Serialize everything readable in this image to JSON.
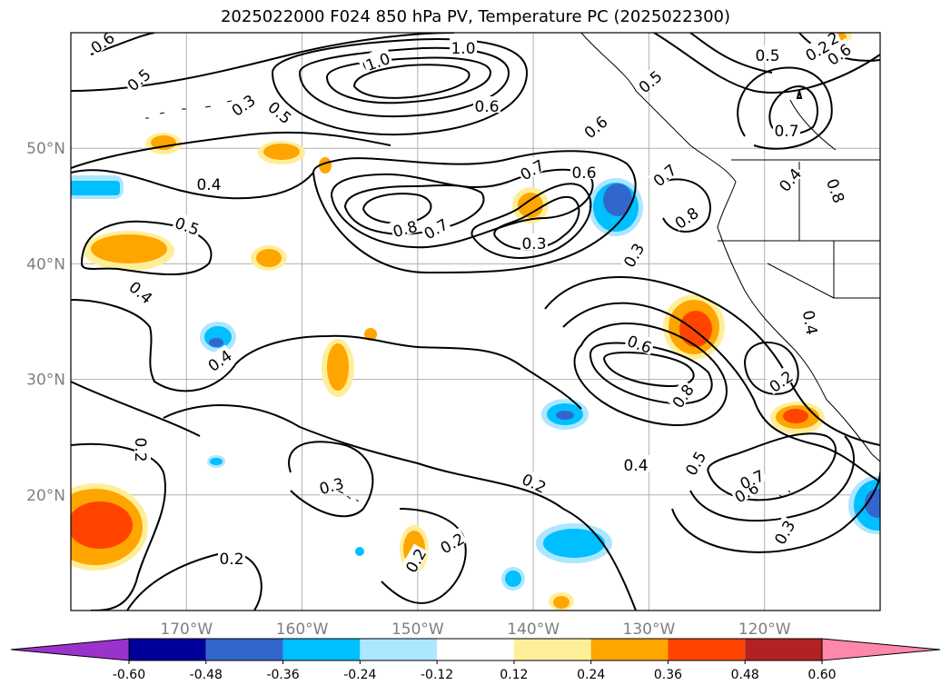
{
  "title": "2025022000 F024 850 hPa PV, Temperature PC (2025022300)",
  "map": {
    "lon_range": [
      -180,
      -110
    ],
    "lat_range": [
      10,
      60
    ],
    "lon_ticks": [
      {
        "value": -170,
        "label": "170°W"
      },
      {
        "value": -160,
        "label": "160°W"
      },
      {
        "value": -150,
        "label": "150°W"
      },
      {
        "value": -140,
        "label": "140°W"
      },
      {
        "value": -130,
        "label": "130°W"
      },
      {
        "value": -120,
        "label": "120°W"
      }
    ],
    "lat_ticks": [
      {
        "value": 20,
        "label": "20°N"
      },
      {
        "value": 30,
        "label": "30°N"
      },
      {
        "value": 40,
        "label": "40°N"
      },
      {
        "value": 50,
        "label": "50°N"
      }
    ],
    "gridlines": true,
    "contour_labels": [
      "0.6",
      "0.5",
      "0.4",
      "0.3",
      "1.0",
      "0.8",
      "0.8",
      "0.7",
      "0.6",
      "0.5",
      "0.3",
      "0.5",
      "0.4",
      "0.4",
      "0.3",
      "0.2",
      "0.2",
      "0.2",
      "0.2",
      "0.2",
      "0.3",
      "0.4",
      "0.5",
      "0.6",
      "0.7",
      "0.8",
      "0.7",
      "0.6",
      "0.6",
      "0.7",
      "0.8",
      "0.6",
      "0.7",
      "0.4",
      "0.2",
      "0.3",
      "0.4",
      "0.5",
      "0.6",
      "0.2",
      "0.2",
      "1.0",
      "0.8",
      "0.5"
    ]
  },
  "colorbar": {
    "levels": [
      "-0.60",
      "-0.48",
      "-0.36",
      "-0.24",
      "-0.12",
      "0.12",
      "0.24",
      "0.36",
      "0.48",
      "0.60"
    ],
    "colors": [
      "#9933cc",
      "#000099",
      "#3366cc",
      "#00bfff",
      "#ade6ff",
      "#ffffff",
      "#ffee99",
      "#ffa500",
      "#ff4400",
      "#b22222",
      "#ff88aa"
    ]
  },
  "colors": {
    "cold_1": "#00bfff",
    "cold_2": "#3366cc",
    "cold_light": "#ade6ff",
    "warm_light": "#ffee99",
    "warm_1": "#ffa500",
    "warm_2": "#ff4400"
  }
}
